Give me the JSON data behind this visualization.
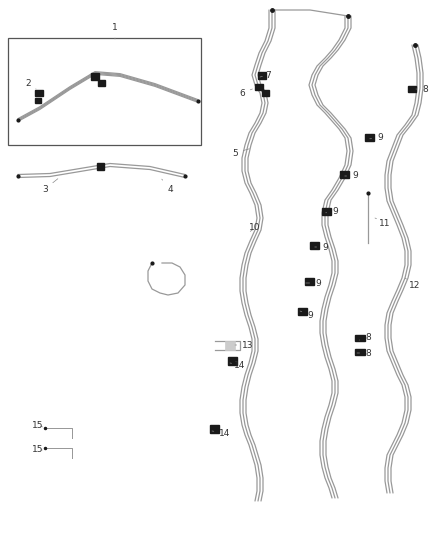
{
  "bg_color": "#ffffff",
  "line_color": "#999999",
  "dark_color": "#1a1a1a",
  "label_color": "#333333",
  "label_fontsize": 6.5,
  "fig_width": 4.38,
  "fig_height": 5.33,
  "dpi": 100
}
